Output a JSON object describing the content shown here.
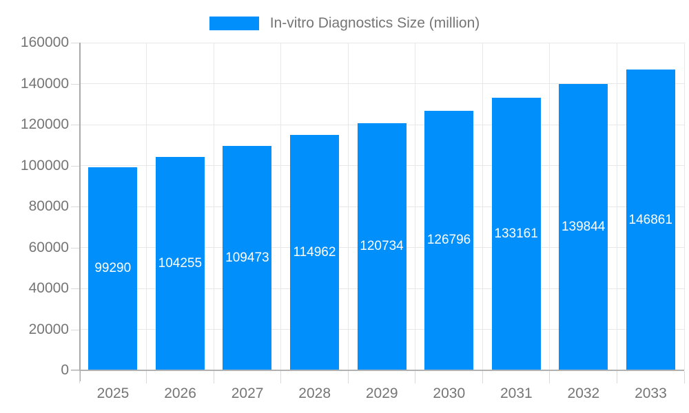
{
  "chart_data": {
    "type": "bar",
    "title": "In-vitro Diagnostics Size (million)",
    "categories": [
      "2025",
      "2026",
      "2027",
      "2028",
      "2029",
      "2030",
      "2031",
      "2032",
      "2033"
    ],
    "series": [
      {
        "name": "In-vitro Diagnostics Size (million)",
        "values": [
          99290,
          104255,
          109473,
          114962,
          120734,
          126796,
          133161,
          139844,
          146861
        ]
      }
    ],
    "xlabel": "",
    "ylabel": "",
    "ylim": [
      0,
      160000
    ],
    "yticks": [
      0,
      20000,
      40000,
      60000,
      80000,
      100000,
      120000,
      140000,
      160000
    ],
    "grid": true,
    "legend_position": "top",
    "value_labels_position": "inside-center"
  },
  "colors": {
    "bar": "#008FFB",
    "axis_text": "#757575",
    "gridline": "#e7e7e7",
    "axis_line": "#b1b1b1",
    "tick": "#d9d9d9",
    "value_label_text": "#ffffff",
    "background": "#ffffff"
  }
}
